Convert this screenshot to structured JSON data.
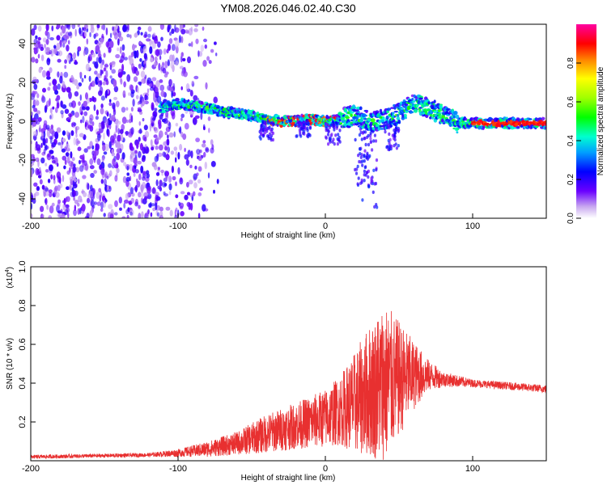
{
  "title": "YM08.2026.046.02.40.C30",
  "chart_data": [
    {
      "type": "heatmap",
      "name": "spectrogram",
      "xlabel": "Height of straight line (km)",
      "ylabel": "Frequency (Hz)",
      "xlim": [
        -200,
        150
      ],
      "ylim": [
        -50,
        50
      ],
      "x_ticks": [
        -200,
        -100,
        0,
        100
      ],
      "y_ticks": [
        -40,
        -20,
        0,
        20,
        40
      ],
      "ridge": [
        {
          "x": -110,
          "y": 7
        },
        {
          "x": -100,
          "y": 9
        },
        {
          "x": -90,
          "y": 8
        },
        {
          "x": -80,
          "y": 7
        },
        {
          "x": -70,
          "y": 5
        },
        {
          "x": -60,
          "y": 4
        },
        {
          "x": -50,
          "y": 3
        },
        {
          "x": -40,
          "y": 1
        },
        {
          "x": -30,
          "y": 0
        },
        {
          "x": -20,
          "y": 0
        },
        {
          "x": -10,
          "y": 1
        },
        {
          "x": 0,
          "y": 0
        },
        {
          "x": 10,
          "y": 1
        },
        {
          "x": 20,
          "y": 3
        },
        {
          "x": 30,
          "y": 0
        },
        {
          "x": 40,
          "y": 1
        },
        {
          "x": 50,
          "y": 4
        },
        {
          "x": 60,
          "y": 9
        },
        {
          "x": 70,
          "y": 7
        },
        {
          "x": 80,
          "y": 3
        },
        {
          "x": 90,
          "y": -1
        },
        {
          "x": 100,
          "y": -1
        },
        {
          "x": 110,
          "y": -1
        },
        {
          "x": 120,
          "y": -1
        },
        {
          "x": 150,
          "y": -1
        }
      ],
      "colorbar": {
        "label": "Normalized spectral amplitude",
        "ticks": [
          "0.0",
          "0.2",
          "0.4",
          "0.6",
          "0.8"
        ],
        "tick_values": [
          0.0,
          0.2,
          0.4,
          0.6,
          0.8
        ],
        "range": [
          0,
          1
        ]
      }
    },
    {
      "type": "line",
      "name": "snr",
      "xlabel": "Height of straight line (km)",
      "ylabel": "SNR (10 * v/v)",
      "scale_label": "(x10",
      "scale_exp": "4",
      "scale_close": ")",
      "xlim": [
        -200,
        150
      ],
      "ylim": [
        0,
        1.0
      ],
      "x_ticks": [
        -200,
        -100,
        0,
        100
      ],
      "y_ticks": [
        "0.2",
        "0.4",
        "0.6",
        "0.8",
        "1.0"
      ],
      "y_tick_values": [
        0.2,
        0.4,
        0.6,
        0.8,
        1.0
      ],
      "color": "#e83030",
      "envelope": [
        {
          "x": -200,
          "base": 0.02,
          "amp": 0.01
        },
        {
          "x": -120,
          "base": 0.03,
          "amp": 0.01
        },
        {
          "x": -100,
          "base": 0.04,
          "amp": 0.02
        },
        {
          "x": -80,
          "base": 0.06,
          "amp": 0.04
        },
        {
          "x": -60,
          "base": 0.09,
          "amp": 0.06
        },
        {
          "x": -40,
          "base": 0.14,
          "amp": 0.1
        },
        {
          "x": -20,
          "base": 0.18,
          "amp": 0.12
        },
        {
          "x": 0,
          "base": 0.22,
          "amp": 0.15
        },
        {
          "x": 10,
          "base": 0.26,
          "amp": 0.18
        },
        {
          "x": 20,
          "base": 0.3,
          "amp": 0.26
        },
        {
          "x": 30,
          "base": 0.36,
          "amp": 0.34
        },
        {
          "x": 40,
          "base": 0.4,
          "amp": 0.42
        },
        {
          "x": 50,
          "base": 0.42,
          "amp": 0.3
        },
        {
          "x": 60,
          "base": 0.44,
          "amp": 0.18
        },
        {
          "x": 70,
          "base": 0.44,
          "amp": 0.08
        },
        {
          "x": 80,
          "base": 0.42,
          "amp": 0.04
        },
        {
          "x": 100,
          "base": 0.4,
          "amp": 0.02
        },
        {
          "x": 150,
          "base": 0.37,
          "amp": 0.02
        }
      ]
    }
  ]
}
